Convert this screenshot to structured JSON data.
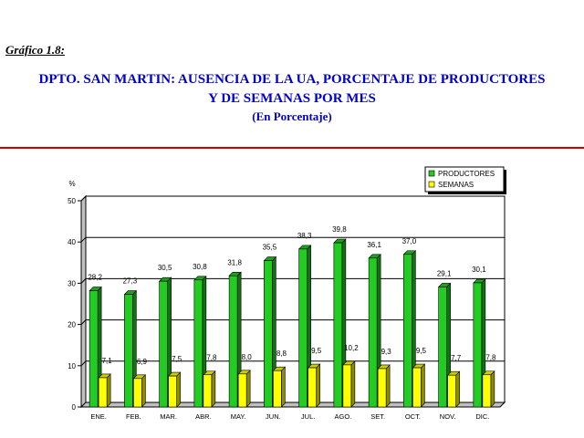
{
  "header": {
    "figure_label": "Gráfico 1.8:",
    "title_line1": "DPTO. SAN MARTIN: AUSENCIA DE LA UA, PORCENTAJE DE PRODUCTORES",
    "title_line2": "Y DE SEMANAS POR MES",
    "title_line3": "(En Porcentaje)"
  },
  "chart_data": {
    "type": "bar",
    "ylabel": "%",
    "ylim": [
      0,
      50
    ],
    "yticks": [
      0,
      10,
      20,
      30,
      40,
      50
    ],
    "grid": true,
    "legend_position": "top-right",
    "categories": [
      "ENE.",
      "FEB.",
      "MAR.",
      "ABR.",
      "MAY.",
      "JUN.",
      "JUL.",
      "AGO.",
      "SET.",
      "OCT.",
      "NOV.",
      "DIC."
    ],
    "series": [
      {
        "name": "PRODUCTORES",
        "color": "#22cc22",
        "values": [
          28.2,
          27.3,
          30.5,
          30.8,
          31.8,
          35.5,
          38.3,
          39.8,
          36.1,
          37.0,
          29.1,
          30.1
        ],
        "labels": [
          "28,2",
          "27,3",
          "30,5",
          "30,8",
          "31,8",
          "35,5",
          "38,3",
          "39,8",
          "36,1",
          "37,0",
          "29,1",
          "30,1"
        ]
      },
      {
        "name": "SEMANAS",
        "color": "#ffff00",
        "values": [
          7.1,
          6.9,
          7.5,
          7.8,
          8.0,
          8.8,
          9.5,
          10.2,
          9.3,
          9.5,
          7.7,
          7.8
        ],
        "labels": [
          "7,1",
          "6,9",
          "7,5",
          "7,8",
          "8,0",
          "8,8",
          "9,5",
          "10,2",
          "9,3",
          "9,5",
          "7,7",
          "7,8"
        ]
      }
    ]
  }
}
